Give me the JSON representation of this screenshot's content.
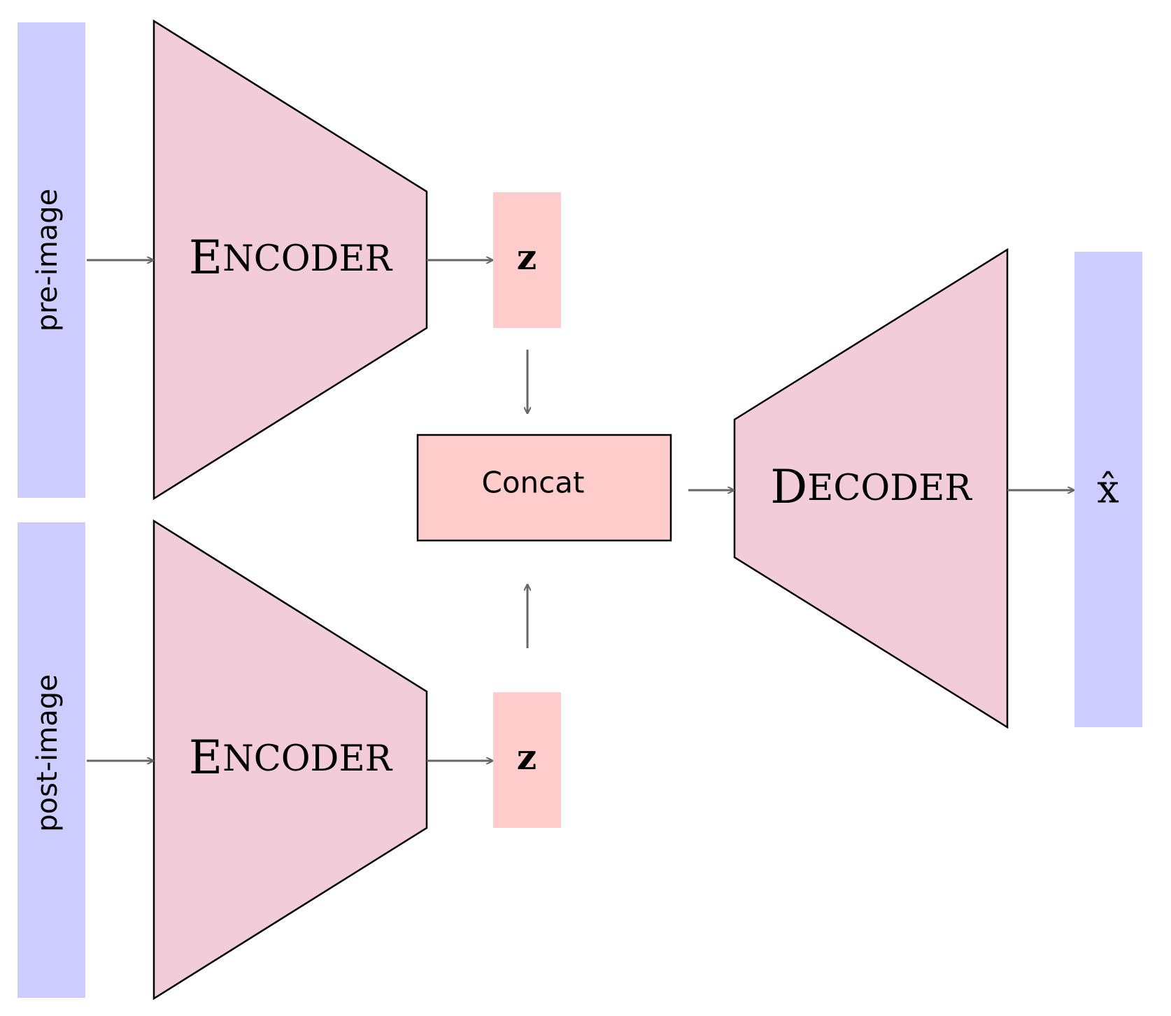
{
  "inputs": {
    "pre_image": "pre-image",
    "post_image": "post-image"
  },
  "encoder_top": {
    "first": "E",
    "rest": "NCODER"
  },
  "encoder_bottom": {
    "first": "E",
    "rest": "NCODER"
  },
  "latent_top": "z",
  "latent_bottom": "z",
  "concat": "Concat",
  "decoder": {
    "first": "D",
    "rest": "ECODER"
  },
  "output": "x̂",
  "colors": {
    "input_fill": "#ccccff",
    "trapezoid_fill": "#f2ccd9",
    "latent_fill": "#ffcccc",
    "concat_fill": "#ffcccc",
    "arrow": "#666666",
    "stroke": "#000000"
  }
}
